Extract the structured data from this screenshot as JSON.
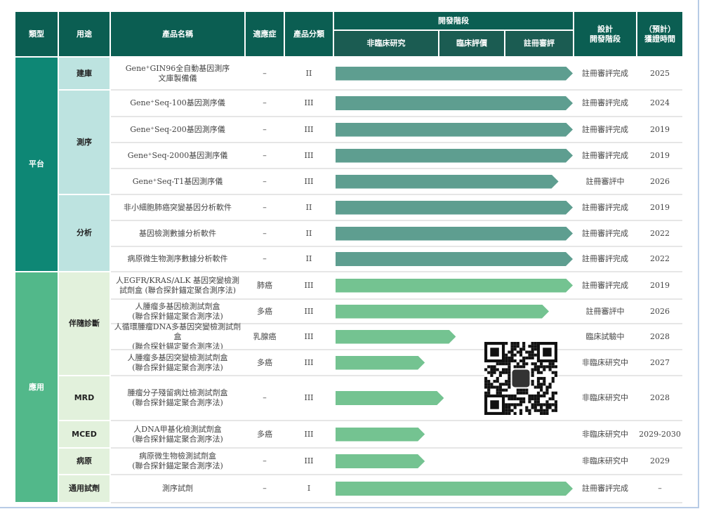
{
  "header": {
    "type": "類型",
    "use": "用途",
    "product_name": "產品名稱",
    "indication": "適應症",
    "classification": "產品分類",
    "development_stage": "開發階段",
    "stages": [
      "非臨床研究",
      "臨床評價",
      "註冊審評"
    ],
    "design_stage": "設計\n開發階段",
    "expected_time": "（預計）\n獲證時間"
  },
  "colors": {
    "header": "#0b5e52",
    "platform_type": "#0e8775",
    "application_type": "#52b88a",
    "platform_use": "#bde3e0",
    "application_use": "#e2f1dc",
    "platform_bar": "#5e9e90",
    "application_bar": "#74c391"
  },
  "groups": [
    {
      "type": "平台",
      "kind": "platform",
      "uses": [
        {
          "name": "建庫",
          "rows": [
            {
              "product": "Gene⁺GIN96全自動基因測序\n文庫製備儀",
              "indication": "–",
              "class": "II",
              "progress_pct": 100,
              "status": "註冊審評完成",
              "year": "2025"
            }
          ]
        },
        {
          "name": "測序",
          "rows": [
            {
              "product": "Gene⁺Seq-100基因測序儀",
              "indication": "–",
              "class": "III",
              "progress_pct": 100,
              "status": "註冊審評完成",
              "year": "2024"
            },
            {
              "product": "Gene⁺Seq-200基因測序儀",
              "indication": "–",
              "class": "III",
              "progress_pct": 100,
              "status": "註冊審評完成",
              "year": "2019"
            },
            {
              "product": "Gene⁺Seq-2000基因測序儀",
              "indication": "–",
              "class": "III",
              "progress_pct": 100,
              "status": "註冊審評完成",
              "year": "2019"
            },
            {
              "product": "Gene⁺Seq-T1基因測序儀",
              "indication": "–",
              "class": "III",
              "progress_pct": 94,
              "status": "註冊審評中",
              "year": "2026"
            }
          ]
        },
        {
          "name": "分析",
          "rows": [
            {
              "product": "非小細胞肺癌突變基因分析軟件",
              "indication": "–",
              "class": "II",
              "progress_pct": 100,
              "status": "註冊審評完成",
              "year": "2019"
            },
            {
              "product": "基因檢測數據分析軟件",
              "indication": "–",
              "class": "II",
              "progress_pct": 100,
              "status": "註冊審評完成",
              "year": "2022"
            },
            {
              "product": "病原微生物測序數據分析軟件",
              "indication": "–",
              "class": "II",
              "progress_pct": 100,
              "status": "註冊審評完成",
              "year": "2022"
            }
          ]
        }
      ]
    },
    {
      "type": "應用",
      "kind": "application",
      "uses": [
        {
          "name": "伴隨診斷",
          "rows": [
            {
              "product": "人EGFR/KRAS/ALK 基因突變檢測\n試劑盒 (聯合探針錨定聚合測序法)",
              "indication": "肺癌",
              "class": "III",
              "progress_pct": 100,
              "status": "註冊審評完成",
              "year": "2019"
            },
            {
              "product": "人腫瘤多基因檢測試劑盒\n(聯合探針錨定聚合測序法)",
              "indication": "多癌",
              "class": "III",
              "progress_pct": 90,
              "status": "註冊審評中",
              "year": "2026"
            },
            {
              "product": "人循環腫瘤DNA多基因突變檢測試劑盒\n(聯合探針錨定聚合測序法)",
              "indication": "乳腺癌",
              "class": "III",
              "progress_pct": 51,
              "status": "臨床試驗中",
              "year": "2028"
            },
            {
              "product": "人腫瘤多基因突變檢測試劑盒\n(聯合探針錨定聚合測序法)",
              "indication": "多癌",
              "class": "III",
              "progress_pct": 38,
              "status": "非臨床研究中",
              "year": "2027"
            }
          ]
        },
        {
          "name": "MRD",
          "rows": [
            {
              "product": "腫瘤分子殘留病灶檢測試劑盒\n(聯合探針錨定聚合測序法)",
              "indication": "–",
              "class": "III",
              "progress_pct": 46,
              "status": "非臨床研究中",
              "year": "2028"
            }
          ]
        },
        {
          "name": "MCED",
          "rows": [
            {
              "product": "人DNA甲基化檢測試劑盒\n(聯合探針錨定聚合測序法)",
              "indication": "多癌",
              "class": "III",
              "progress_pct": 38,
              "status": "非臨床研究中",
              "year": "2029-2030"
            }
          ]
        },
        {
          "name": "病原",
          "rows": [
            {
              "product": "病原微生物檢測試劑盒\n(聯合探針錨定聚合測序法)",
              "indication": "–",
              "class": "III",
              "progress_pct": 38,
              "status": "非臨床研究中",
              "year": "2029"
            }
          ]
        },
        {
          "name": "通用試劑",
          "rows": [
            {
              "product": "測序試劑",
              "indication": "–",
              "class": "I",
              "progress_pct": 100,
              "status": "註冊審評完成",
              "year": "–"
            }
          ]
        }
      ]
    }
  ]
}
